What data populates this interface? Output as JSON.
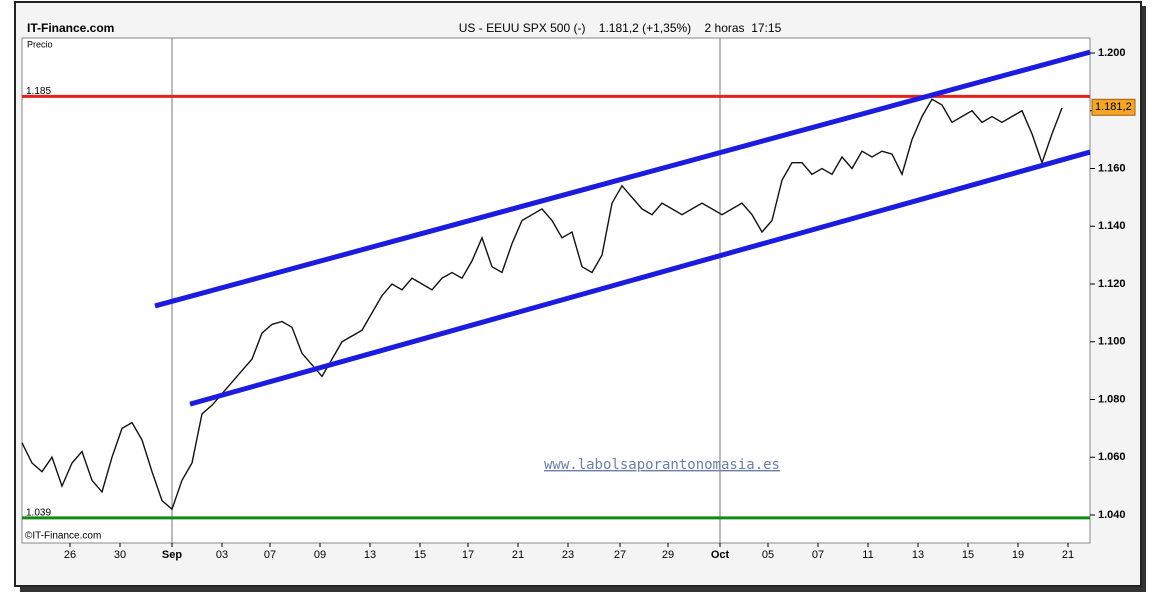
{
  "chart_data": {
    "type": "line",
    "brand": "IT-Finance.com",
    "title": "US - EEUU SPX 500 (-)    1.181,2 (+1,35%)    2 horas  17:15",
    "y_label": "Precio",
    "copyright": "©IT-Finance.com",
    "watermark": "www.labolsaporantonomasia.es",
    "xlim": [
      0,
      106.8
    ],
    "ylim": [
      1.0303,
      1.2052
    ],
    "xticks": [
      {
        "value": 4.8,
        "label": "26"
      },
      {
        "value": 9.8,
        "label": "30"
      },
      {
        "value": 15,
        "label": "Sep"
      },
      {
        "value": 20,
        "label": "03"
      },
      {
        "value": 24.8,
        "label": "07"
      },
      {
        "value": 29.8,
        "label": "09"
      },
      {
        "value": 34.8,
        "label": "13"
      },
      {
        "value": 39.8,
        "label": "15"
      },
      {
        "value": 44.6,
        "label": "17"
      },
      {
        "value": 49.6,
        "label": "21"
      },
      {
        "value": 54.6,
        "label": "23"
      },
      {
        "value": 59.8,
        "label": "27"
      },
      {
        "value": 64.6,
        "label": "29"
      },
      {
        "value": 69.8,
        "label": "Oct"
      },
      {
        "value": 74.6,
        "label": "05"
      },
      {
        "value": 79.6,
        "label": "07"
      },
      {
        "value": 84.6,
        "label": "11"
      },
      {
        "value": 89.6,
        "label": "13"
      },
      {
        "value": 94.6,
        "label": "15"
      },
      {
        "value": 99.6,
        "label": "19"
      },
      {
        "value": 104.6,
        "label": "21"
      }
    ],
    "month_gridlines": [
      15,
      69.8
    ],
    "yticks": [
      {
        "value": 1.04,
        "label": "1.040"
      },
      {
        "value": 1.06,
        "label": "1.060"
      },
      {
        "value": 1.08,
        "label": "1.080"
      },
      {
        "value": 1.1,
        "label": "1.100"
      },
      {
        "value": 1.12,
        "label": "1.120"
      },
      {
        "value": 1.14,
        "label": "1.140"
      },
      {
        "value": 1.16,
        "label": "1.160"
      },
      {
        "value": 1.18,
        "label": "1.180"
      },
      {
        "value": 1.2,
        "label": "1.200"
      }
    ],
    "x": [
      0,
      1,
      2,
      3,
      4,
      5,
      6,
      7,
      8,
      9,
      10,
      11,
      12,
      13,
      14,
      15,
      16,
      17,
      18,
      19,
      20,
      21,
      22,
      23,
      24,
      25,
      26,
      27,
      28,
      29,
      30,
      31,
      32,
      33,
      34,
      35,
      36,
      37,
      38,
      39,
      40,
      41,
      42,
      43,
      44,
      45,
      46,
      47,
      48,
      49,
      50,
      51,
      52,
      53,
      54,
      55,
      56,
      57,
      58,
      59,
      60,
      61,
      62,
      63,
      64,
      65,
      66,
      67,
      68,
      69,
      70,
      71,
      72,
      73,
      74,
      75,
      76,
      77,
      78,
      79,
      80,
      81,
      82,
      83,
      84,
      85,
      86,
      87,
      88,
      89,
      90,
      91,
      92,
      93,
      94,
      95,
      96,
      97,
      98,
      99,
      100,
      101,
      102,
      103,
      104
    ],
    "series": [
      {
        "color": "#111111",
        "values": [
          1.065,
          1.058,
          1.055,
          1.06,
          1.05,
          1.058,
          1.062,
          1.052,
          1.048,
          1.06,
          1.07,
          1.072,
          1.066,
          1.055,
          1.045,
          1.042,
          1.052,
          1.058,
          1.075,
          1.078,
          1.082,
          1.086,
          1.09,
          1.094,
          1.103,
          1.106,
          1.107,
          1.105,
          1.096,
          1.092,
          1.088,
          1.094,
          1.1,
          1.102,
          1.104,
          1.11,
          1.116,
          1.12,
          1.118,
          1.122,
          1.12,
          1.118,
          1.122,
          1.124,
          1.122,
          1.128,
          1.136,
          1.126,
          1.124,
          1.134,
          1.142,
          1.144,
          1.146,
          1.142,
          1.136,
          1.138,
          1.126,
          1.124,
          1.13,
          1.148,
          1.154,
          1.15,
          1.146,
          1.144,
          1.148,
          1.146,
          1.144,
          1.146,
          1.148,
          1.146,
          1.144,
          1.146,
          1.148,
          1.144,
          1.138,
          1.142,
          1.156,
          1.162,
          1.162,
          1.158,
          1.16,
          1.158,
          1.164,
          1.16,
          1.166,
          1.164,
          1.166,
          1.165,
          1.158,
          1.17,
          1.178,
          1.184,
          1.182,
          1.176,
          1.178,
          1.18,
          1.176,
          1.178,
          1.176,
          1.178,
          1.18,
          1.172,
          1.162,
          1.172,
          1.181
        ]
      }
    ],
    "levels": [
      {
        "value": 1.185,
        "label": "1.185",
        "color": "#e8201c"
      },
      {
        "value": 1.039,
        "label": "1.039",
        "color": "#138a13"
      }
    ],
    "trend_lines": [
      {
        "color": "#1c1ce0",
        "x": [
          13.3,
          106.8
        ],
        "values": [
          1.1124,
          1.2003
        ]
      },
      {
        "color": "#1c1ce0",
        "x": [
          16.8,
          106.8
        ],
        "values": [
          1.0784,
          1.1657
        ]
      }
    ],
    "last_price": {
      "value": 1.1812,
      "label": "1.181,2",
      "color": "#f5a623"
    }
  }
}
